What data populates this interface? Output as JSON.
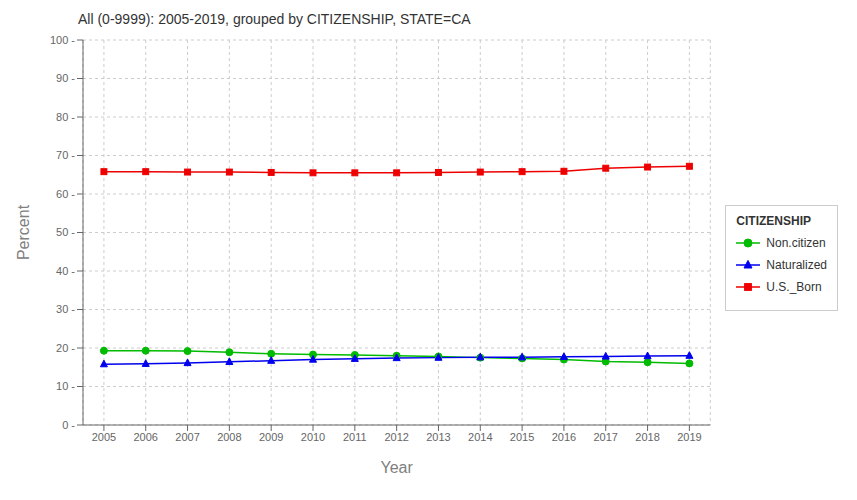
{
  "chart_data": {
    "type": "line",
    "title": "All (0-9999): 2005-2019, grouped by CITIZENSHIP, STATE=CA",
    "xlabel": "Year",
    "ylabel": "Percent",
    "x": [
      2005,
      2006,
      2007,
      2008,
      2009,
      2010,
      2011,
      2012,
      2013,
      2014,
      2015,
      2016,
      2017,
      2018,
      2019
    ],
    "series": [
      {
        "name": "Non.citizen",
        "color": "#00BB00",
        "marker": "circle",
        "values": [
          19.3,
          19.3,
          19.2,
          18.9,
          18.5,
          18.3,
          18.2,
          18.0,
          17.8,
          17.5,
          17.3,
          17.0,
          16.5,
          16.3,
          16.0
        ]
      },
      {
        "name": "Naturalized",
        "color": "#0000EE",
        "marker": "triangle",
        "values": [
          15.8,
          15.9,
          16.1,
          16.4,
          16.7,
          17.0,
          17.2,
          17.4,
          17.5,
          17.6,
          17.6,
          17.7,
          17.8,
          17.9,
          18.0
        ]
      },
      {
        "name": "U.S._Born",
        "color": "#EE0000",
        "marker": "square",
        "values": [
          65.8,
          65.8,
          65.7,
          65.7,
          65.6,
          65.5,
          65.5,
          65.5,
          65.6,
          65.7,
          65.8,
          65.9,
          66.7,
          67.0,
          67.2
        ]
      }
    ],
    "xlim": [
      2004.5,
      2019.5
    ],
    "xticks": [
      2005,
      2006,
      2007,
      2008,
      2009,
      2010,
      2011,
      2012,
      2013,
      2014,
      2015,
      2016,
      2017,
      2018,
      2019
    ],
    "ylim": [
      0,
      100
    ],
    "yticks": [
      {
        "value": 0,
        "label": "0 -"
      },
      {
        "value": 10,
        "label": "10 -"
      },
      {
        "value": 20,
        "label": "20 -"
      },
      {
        "value": 30,
        "label": "30 -"
      },
      {
        "value": 40,
        "label": "40 -"
      },
      {
        "value": 50,
        "label": "50 -"
      },
      {
        "value": 60,
        "label": "60 -"
      },
      {
        "value": 70,
        "label": "70 -"
      },
      {
        "value": 80,
        "label": "80 -"
      },
      {
        "value": 90,
        "label": "90 -"
      },
      {
        "value": 100,
        "label": "100 -"
      }
    ],
    "grid": true,
    "legend": "right",
    "legend_title": "CITIZENSHIP"
  }
}
